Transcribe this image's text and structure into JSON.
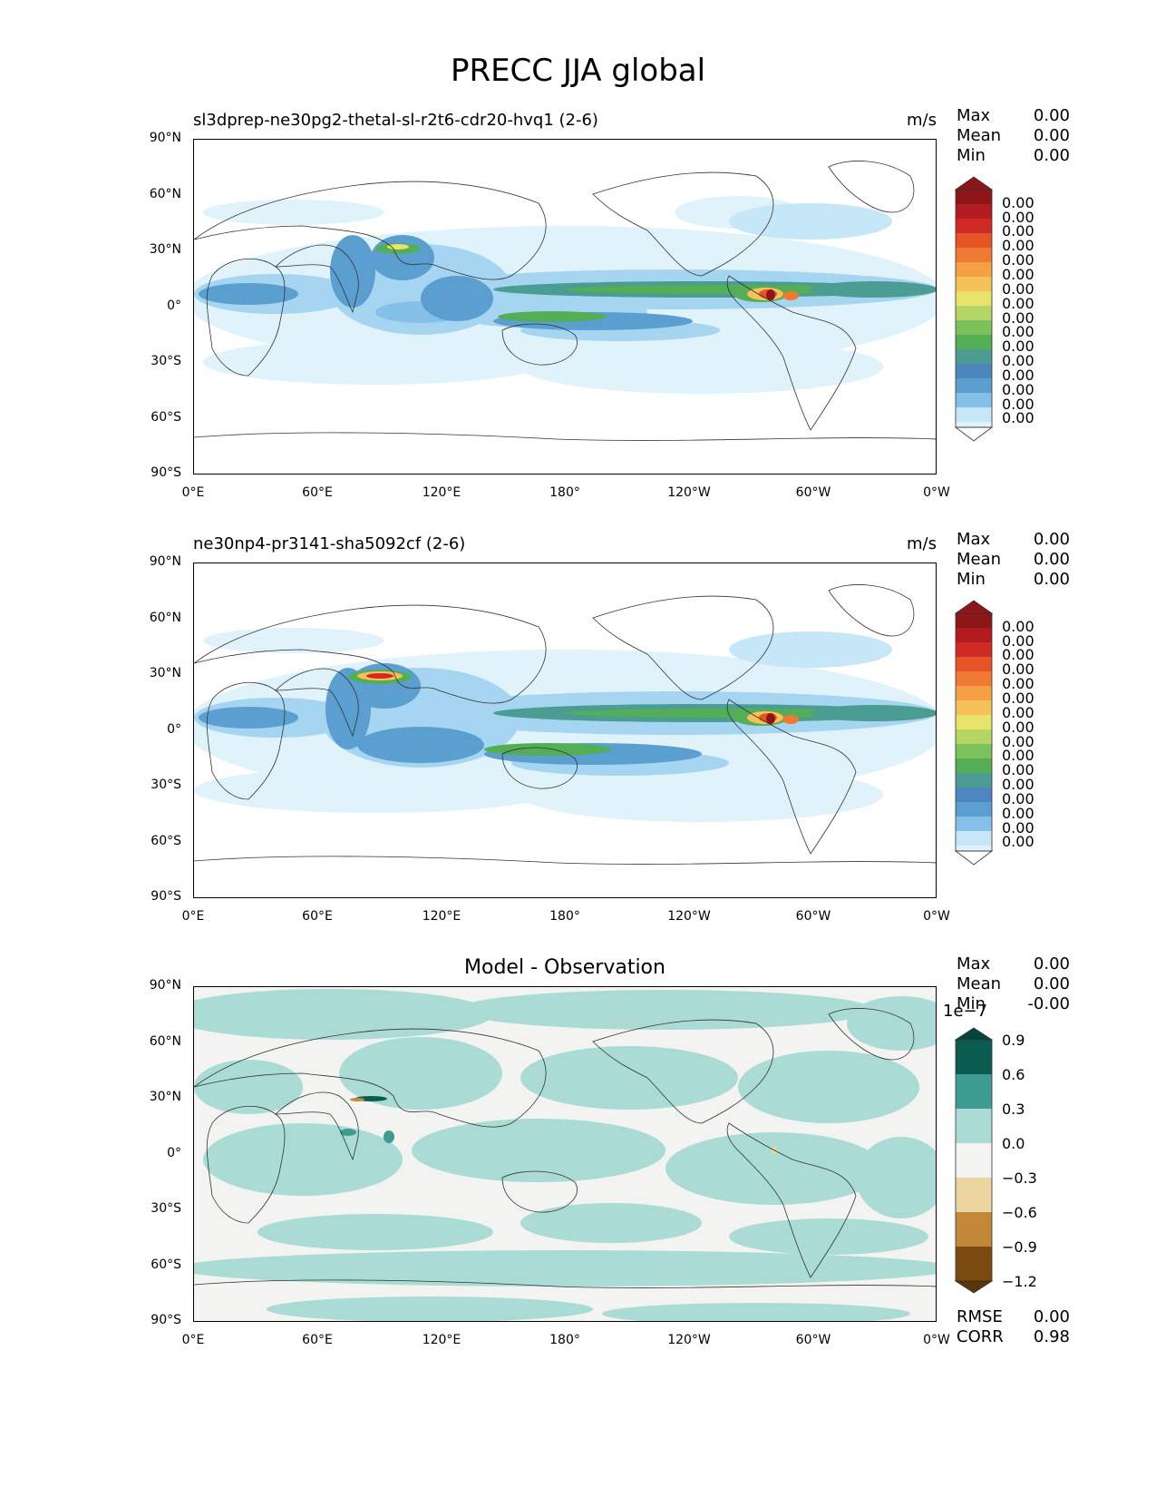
{
  "title": "PRECC JJA global",
  "panels": [
    {
      "id": "test",
      "subtitle": "sl3dprep-ne30pg2-thetal-sl-r2t6-cdr20-hvq1 (2-6)",
      "units": "m/s",
      "stats": {
        "max_label": "Max",
        "max": "0.00",
        "mean_label": "Mean",
        "mean": "0.00",
        "min_label": "Min",
        "min": "0.00"
      },
      "colorbar_labels": [
        "0.00",
        "0.00",
        "0.00",
        "0.00",
        "0.00",
        "0.00",
        "0.00",
        "0.00",
        "0.00",
        "0.00",
        "0.00",
        "0.00",
        "0.00",
        "0.00",
        "0.00",
        "0.00"
      ]
    },
    {
      "id": "reference",
      "subtitle": "ne30np4-pr3141-sha5092cf (2-6)",
      "units": "m/s",
      "stats": {
        "max_label": "Max",
        "max": "0.00",
        "mean_label": "Mean",
        "mean": "0.00",
        "min_label": "Min",
        "min": "0.00"
      },
      "colorbar_labels": [
        "0.00",
        "0.00",
        "0.00",
        "0.00",
        "0.00",
        "0.00",
        "0.00",
        "0.00",
        "0.00",
        "0.00",
        "0.00",
        "0.00",
        "0.00",
        "0.00",
        "0.00",
        "0.00"
      ]
    },
    {
      "id": "diff",
      "title": "Model - Observation",
      "stats": {
        "max_label": "Max",
        "max": "0.00",
        "mean_label": "Mean",
        "mean": "0.00",
        "min_label": "Min",
        "min": "-0.00"
      },
      "scale_label": "1e−7",
      "colorbar_labels": [
        "0.9",
        "0.6",
        "0.3",
        "0.0",
        "−0.3",
        "−0.6",
        "−0.9",
        "−1.2"
      ],
      "metrics": {
        "rmse_label": "RMSE",
        "rmse": "0.00",
        "corr_label": "CORR",
        "corr": "0.98"
      }
    }
  ],
  "axes": {
    "lat_labels": [
      "90°N",
      "60°N",
      "30°N",
      "0°",
      "30°S",
      "60°S",
      "90°S"
    ],
    "lon_labels": [
      "0°E",
      "60°E",
      "120°E",
      "180°",
      "120°W",
      "60°W",
      "0°W"
    ]
  },
  "colors": {
    "precip_scale": [
      "#ffffff",
      "#e0f3fb",
      "#c6e7f7",
      "#a6d5f1",
      "#84c0e8",
      "#5b9fd1",
      "#4d86be",
      "#4b9c92",
      "#53ae55",
      "#7cc15a",
      "#b5d664",
      "#e8e36a",
      "#f7c15a",
      "#f5a044",
      "#ee7a33",
      "#e55427",
      "#cf2a24",
      "#b21b1f",
      "#8e1518"
    ],
    "diff_scale": [
      "#7a4a0f",
      "#c28838",
      "#ecd59f",
      "#f3f4f2",
      "#aadcd5",
      "#3e9c93",
      "#0a5c50",
      "#05443b"
    ]
  }
}
